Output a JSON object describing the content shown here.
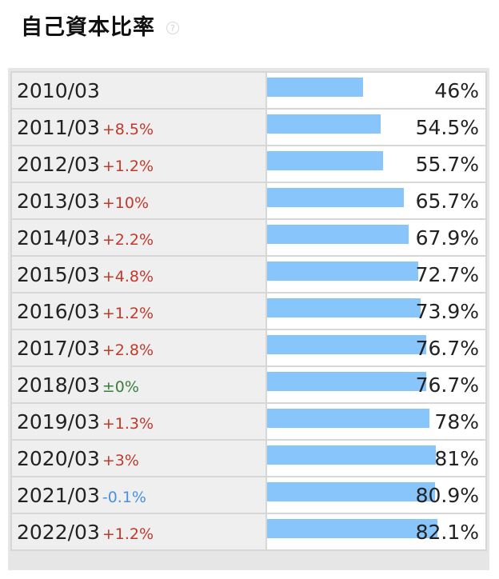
{
  "header": {
    "title": "自己資本比率",
    "help_icon": "question-circle-icon"
  },
  "colors": {
    "bar": "#87c5fb",
    "increase": "#c0392b",
    "no_change": "#3a7d3a",
    "decrease": "#4a90e2"
  },
  "chart_data": {
    "type": "bar",
    "orientation": "horizontal",
    "title": "自己資本比率",
    "categories": [
      "2010/03",
      "2011/03",
      "2012/03",
      "2013/03",
      "2014/03",
      "2015/03",
      "2016/03",
      "2017/03",
      "2018/03",
      "2019/03",
      "2020/03",
      "2021/03",
      "2022/03"
    ],
    "values": [
      46,
      54.5,
      55.7,
      65.7,
      67.9,
      72.7,
      73.9,
      76.7,
      76.7,
      78,
      81,
      80.9,
      82.1
    ],
    "value_labels": [
      "46%",
      "54.5%",
      "55.7%",
      "65.7%",
      "67.9%",
      "72.7%",
      "73.9%",
      "76.7%",
      "76.7%",
      "78%",
      "81%",
      "80.9%",
      "82.1%"
    ],
    "changes": [
      "",
      "+8.5%",
      "+1.2%",
      "+10%",
      "+2.2%",
      "+4.8%",
      "+1.2%",
      "+2.8%",
      "±0%",
      "+1.3%",
      "+3%",
      "-0.1%",
      "+1.2%"
    ],
    "xlim": [
      0,
      100
    ]
  }
}
